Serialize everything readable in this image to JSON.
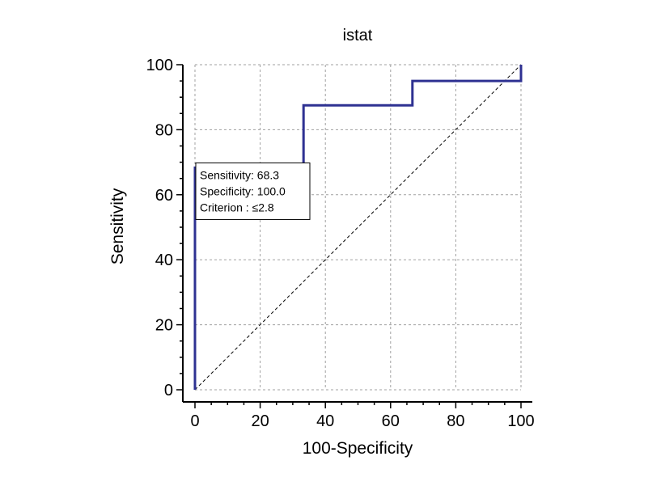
{
  "chart_data": {
    "type": "line",
    "title": "istat",
    "xlabel": "100-Specificity",
    "ylabel": "Sensitivity",
    "xlim": [
      0,
      100
    ],
    "ylim": [
      0,
      100
    ],
    "x_ticks": [
      0,
      20,
      40,
      60,
      80,
      100
    ],
    "y_ticks": [
      0,
      20,
      40,
      60,
      80,
      100
    ],
    "x_tick_labels": [
      "0",
      "20",
      "40",
      "60",
      "80",
      "100"
    ],
    "y_tick_labels": [
      "0",
      "20",
      "40",
      "60",
      "80",
      "100"
    ],
    "grid": true,
    "series": [
      {
        "color": "#2e3192",
        "step": true,
        "x": [
          0,
          0,
          33.3,
          33.3,
          66.7,
          66.7,
          100,
          100
        ],
        "y": [
          0,
          68.3,
          68.3,
          87.5,
          87.5,
          95,
          95,
          100
        ]
      }
    ],
    "reference_line": {
      "x": [
        0,
        100
      ],
      "y": [
        0,
        100
      ],
      "style": "dashed",
      "color": "#000000"
    },
    "annotation": {
      "lines": [
        "Sensitivity: 68.3",
        "Specificity: 100.0",
        "Criterion : ≤2.8"
      ],
      "anchor_x": 0,
      "anchor_y": 68.3,
      "placement": "right-below"
    }
  }
}
